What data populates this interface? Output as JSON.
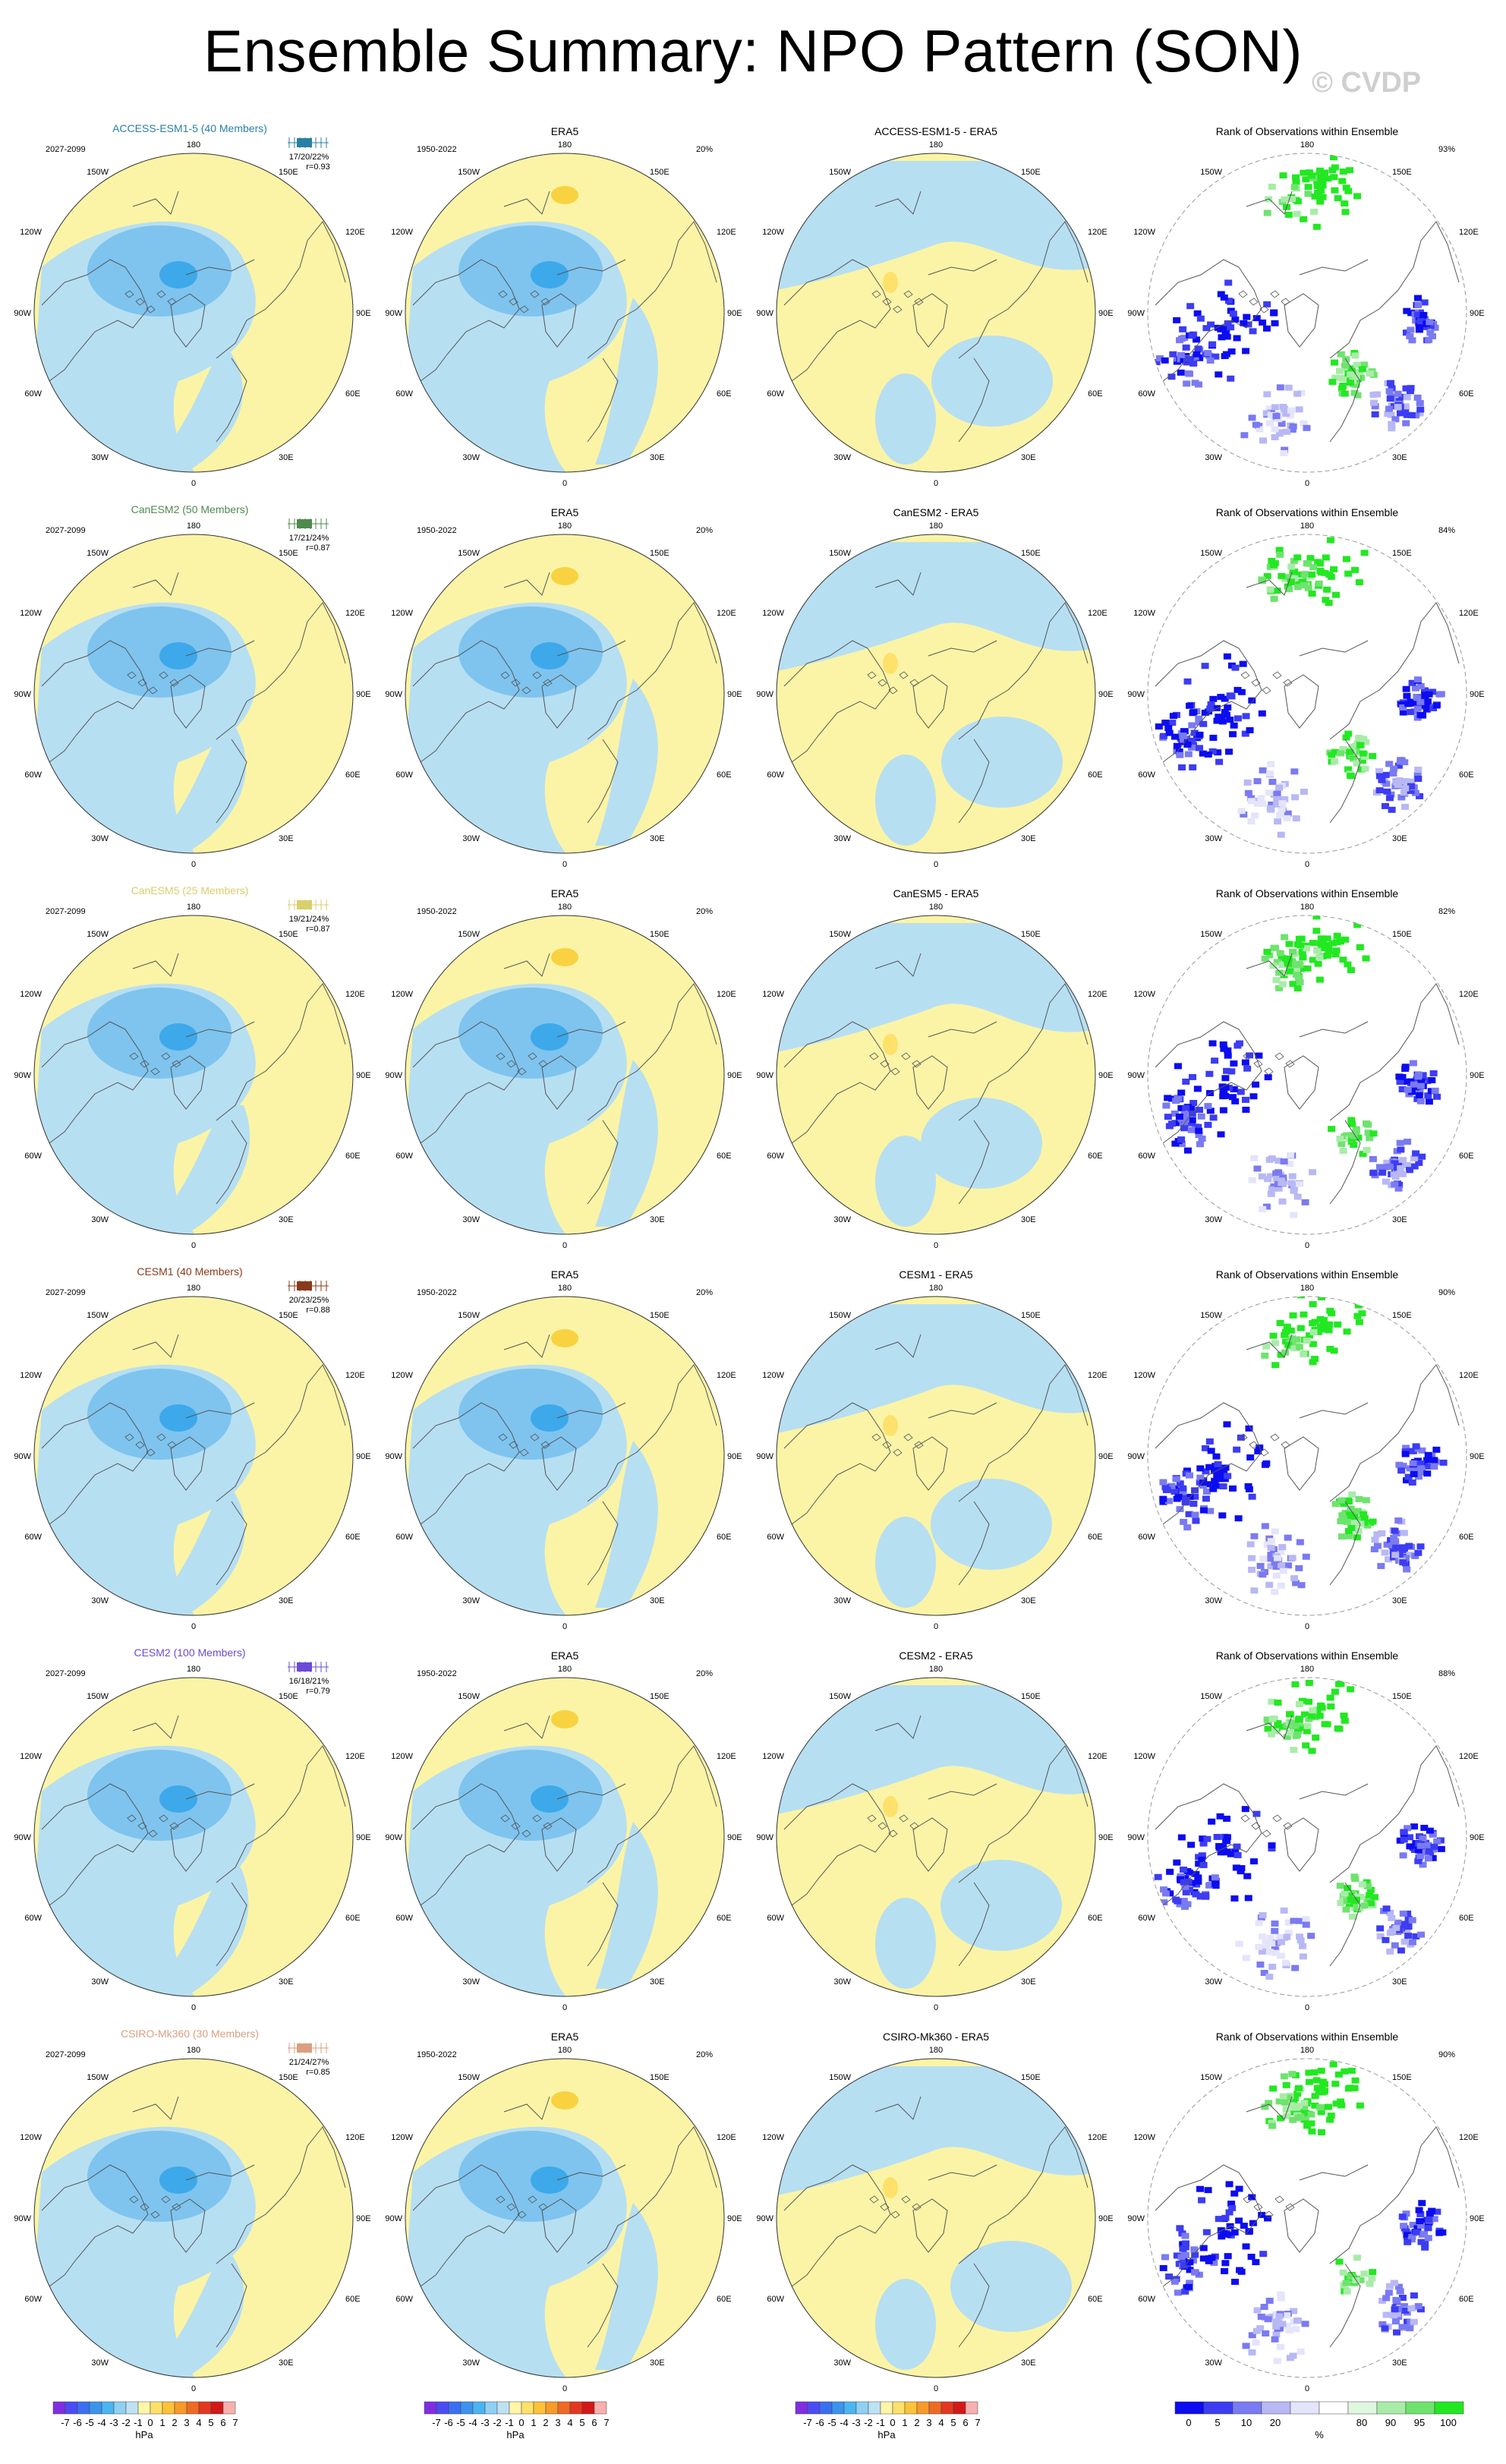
{
  "title": "Ensemble Summary: NPO Pattern (SON)",
  "watermark": "© CVDP",
  "colors": {
    "neg": [
      "#7f2fe0",
      "#4b4bf5",
      "#3a6ff2",
      "#3c93ee",
      "#4bb5f0",
      "#8fd0f3",
      "#bfe2f3"
    ],
    "pos": [
      "#fff6a8",
      "#fde16a",
      "#fbc23a",
      "#f79a2a",
      "#ef6a25",
      "#e3381f",
      "#d31818",
      "#f7b0ae"
    ],
    "rank": [
      "#0c0cf0",
      "#3c3cf3",
      "#7a7af2",
      "#b8b8f5",
      "#e4e4fb",
      "#ffffff",
      "#dff6df",
      "#a8eca8",
      "#6ee36e",
      "#22e822"
    ],
    "map_blue": "#b7dff2",
    "map_yellow": "#fbf4a6",
    "dark_blue": "#7ec4ef",
    "core_blue": "#3da9ea"
  },
  "longitude_labels": {
    "top": "180",
    "t_left": "150W",
    "t_right": "150E",
    "ut_left": "120W",
    "ut_right": "120E",
    "m_left": "90W",
    "m_right": "90E",
    "lb_left": "60W",
    "lb_right": "60E",
    "b_left": "30W",
    "b_right": "30E",
    "bottom": "0"
  },
  "chart_data": {
    "type": "table",
    "rows": [
      {
        "model": "ACCESS-ESM1-5 (40 Members)",
        "model_color": "#2a7fa6",
        "period": "2027-2099",
        "stats": "17/20/22%",
        "r": "r=0.93",
        "diff_title": "ACCESS-ESM1-5 - ERA5",
        "obs_pct": "20%",
        "rank_pct": "93%"
      },
      {
        "model": "CanESM2 (50 Members)",
        "model_color": "#4e8a4e",
        "period": "2027-2099",
        "stats": "17/21/24%",
        "r": "r=0.87",
        "diff_title": "CanESM2 - ERA5",
        "obs_pct": "20%",
        "rank_pct": "84%"
      },
      {
        "model": "CanESM5 (25 Members)",
        "model_color": "#d9cf6c",
        "period": "2027-2099",
        "stats": "19/21/24%",
        "r": "r=0.87",
        "diff_title": "CanESM5 - ERA5",
        "obs_pct": "20%",
        "rank_pct": "82%"
      },
      {
        "model": "CESM1 (40 Members)",
        "model_color": "#8a3a1a",
        "period": "2027-2099",
        "stats": "20/23/25%",
        "r": "r=0.88",
        "diff_title": "CESM1 - ERA5",
        "obs_pct": "20%",
        "rank_pct": "90%"
      },
      {
        "model": "CESM2 (100 Members)",
        "model_color": "#6b4bd6",
        "period": "2027-2099",
        "stats": "16/18/21%",
        "r": "r=0.79",
        "diff_title": "CESM2 - ERA5",
        "obs_pct": "20%",
        "rank_pct": "88%"
      },
      {
        "model": "CSIRO-Mk360 (30 Members)",
        "model_color": "#d9a080",
        "period": "2027-2099",
        "stats": "21/24/27%",
        "r": "r=0.85",
        "diff_title": "CSIRO-Mk360 - ERA5",
        "obs_pct": "20%",
        "rank_pct": "90%"
      }
    ],
    "obs_title": "ERA5",
    "obs_period": "1950-2022",
    "rank_title": "Rank of Observations within Ensemble",
    "colorbar_hpa": {
      "ticks": [
        "-7",
        "-6",
        "-5",
        "-4",
        "-3",
        "-2",
        "-1",
        "0",
        "1",
        "2",
        "3",
        "4",
        "5",
        "6",
        "7"
      ],
      "units": "hPa"
    },
    "colorbar_rank": {
      "ticks": [
        "0",
        "5",
        "10",
        "20",
        "80",
        "90",
        "95",
        "100"
      ],
      "units": "%"
    }
  }
}
